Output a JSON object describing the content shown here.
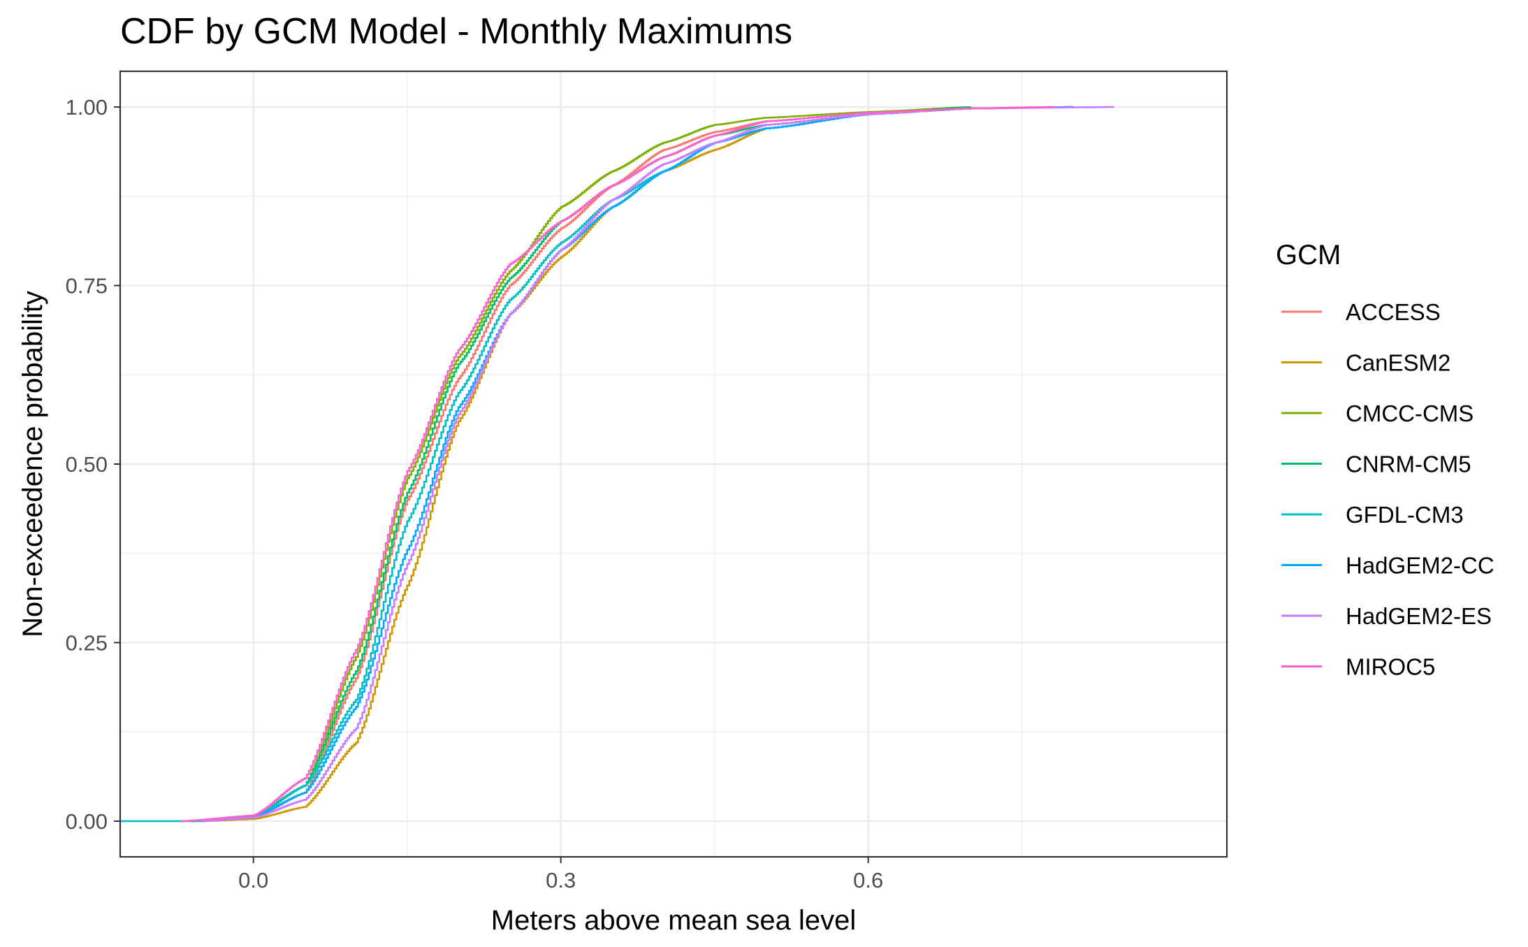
{
  "chart_data": {
    "type": "line",
    "title": "CDF by GCM Model - Monthly Maximums",
    "xlabel": "Meters above mean sea level",
    "ylabel": "Non-exceedence probability",
    "xlim": [
      -0.13,
      0.95
    ],
    "ylim": [
      -0.05,
      1.05
    ],
    "xticks": [
      0.0,
      0.3,
      0.6
    ],
    "xtick_labels": [
      "0.0",
      "0.3",
      "0.6"
    ],
    "yticks": [
      0.0,
      0.25,
      0.5,
      0.75,
      1.0
    ],
    "ytick_labels": [
      "0.00",
      "0.25",
      "0.50",
      "0.75",
      "1.00"
    ],
    "grid": true,
    "legend_title": "GCM",
    "legend_position": "right",
    "series": [
      {
        "name": "ACCESS",
        "color": "#F8766D",
        "x": [
          -0.07,
          0.0,
          0.05,
          0.1,
          0.15,
          0.2,
          0.25,
          0.3,
          0.35,
          0.4,
          0.45,
          0.5,
          0.6,
          0.7,
          0.78
        ],
        "y": [
          0.0,
          0.005,
          0.04,
          0.2,
          0.45,
          0.62,
          0.75,
          0.83,
          0.89,
          0.94,
          0.965,
          0.98,
          0.992,
          0.998,
          1.0
        ]
      },
      {
        "name": "CanESM2",
        "color": "#CD9600",
        "x": [
          -0.05,
          0.0,
          0.05,
          0.1,
          0.15,
          0.2,
          0.25,
          0.3,
          0.35,
          0.4,
          0.45,
          0.5,
          0.6,
          0.7,
          0.8
        ],
        "y": [
          0.0,
          0.003,
          0.02,
          0.11,
          0.33,
          0.56,
          0.71,
          0.79,
          0.86,
          0.91,
          0.94,
          0.97,
          0.99,
          0.998,
          1.0
        ]
      },
      {
        "name": "CMCC-CMS",
        "color": "#7CAE00",
        "x": [
          -0.06,
          0.0,
          0.05,
          0.1,
          0.15,
          0.2,
          0.25,
          0.3,
          0.35,
          0.4,
          0.45,
          0.5,
          0.6,
          0.7
        ],
        "y": [
          0.0,
          0.006,
          0.05,
          0.23,
          0.48,
          0.65,
          0.77,
          0.86,
          0.91,
          0.95,
          0.975,
          0.985,
          0.993,
          1.0
        ]
      },
      {
        "name": "CNRM-CM5",
        "color": "#00BE67",
        "x": [
          -0.06,
          0.0,
          0.05,
          0.1,
          0.15,
          0.2,
          0.25,
          0.3,
          0.35,
          0.4,
          0.45,
          0.5,
          0.6,
          0.7
        ],
        "y": [
          0.0,
          0.006,
          0.05,
          0.21,
          0.46,
          0.64,
          0.76,
          0.84,
          0.89,
          0.93,
          0.96,
          0.975,
          0.99,
          1.0
        ]
      },
      {
        "name": "GFDL-CM3",
        "color": "#00BFC4",
        "x": [
          -0.13,
          -0.05,
          0.0,
          0.05,
          0.1,
          0.15,
          0.2,
          0.25,
          0.3,
          0.35,
          0.4,
          0.45,
          0.5,
          0.6,
          0.7,
          0.8
        ],
        "y": [
          0.0,
          0.0,
          0.008,
          0.05,
          0.17,
          0.42,
          0.6,
          0.73,
          0.81,
          0.87,
          0.91,
          0.95,
          0.97,
          0.99,
          0.998,
          1.0
        ]
      },
      {
        "name": "HadGEM2-CC",
        "color": "#00A9FF",
        "x": [
          -0.05,
          0.0,
          0.05,
          0.1,
          0.15,
          0.2,
          0.25,
          0.3,
          0.35,
          0.4,
          0.45,
          0.5,
          0.6,
          0.7,
          0.8
        ],
        "y": [
          0.0,
          0.006,
          0.04,
          0.16,
          0.38,
          0.58,
          0.71,
          0.8,
          0.86,
          0.91,
          0.95,
          0.97,
          0.99,
          0.998,
          1.0
        ]
      },
      {
        "name": "HadGEM2-ES",
        "color": "#C77CFF",
        "x": [
          -0.05,
          0.0,
          0.05,
          0.1,
          0.15,
          0.2,
          0.25,
          0.3,
          0.35,
          0.4,
          0.45,
          0.5,
          0.6,
          0.7,
          0.84
        ],
        "y": [
          0.0,
          0.005,
          0.03,
          0.13,
          0.36,
          0.57,
          0.71,
          0.8,
          0.87,
          0.92,
          0.95,
          0.975,
          0.99,
          0.998,
          1.0
        ]
      },
      {
        "name": "MIROC5",
        "color": "#FF61CC",
        "x": [
          -0.07,
          0.0,
          0.05,
          0.1,
          0.15,
          0.2,
          0.25,
          0.3,
          0.35,
          0.4,
          0.45,
          0.5,
          0.6,
          0.7,
          0.78
        ],
        "y": [
          0.0,
          0.008,
          0.06,
          0.24,
          0.49,
          0.66,
          0.78,
          0.84,
          0.89,
          0.93,
          0.96,
          0.98,
          0.992,
          0.998,
          1.0
        ]
      }
    ]
  }
}
